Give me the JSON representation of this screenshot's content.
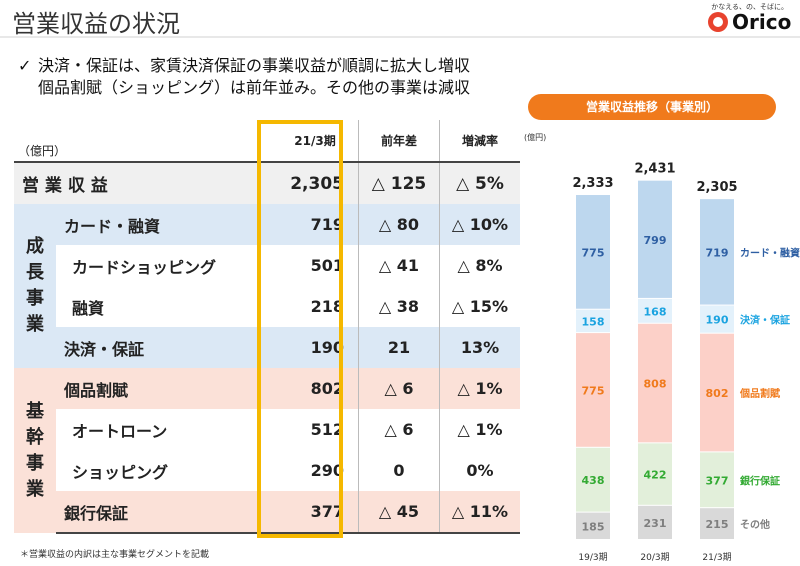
{
  "header": {
    "title": "営業収益の状況",
    "logo_tagline": "かなえる、の、そばに。",
    "logo_text": "Orico"
  },
  "bullet": {
    "check": "✓",
    "line1": "決済・保証は、家賃決済保証の事業収益が順調に拡大し増収",
    "line2": "個品割賦（ショッピング）は前年並み。その他の事業は減収"
  },
  "table": {
    "unit": "（億円）",
    "headers": {
      "current": "21/3期",
      "diff": "前年差",
      "rate": "増減率"
    },
    "total": {
      "label": "営 業 収 益",
      "value": "2,305",
      "diff": "△ 125",
      "rate": "△ 5%"
    },
    "seicho_label": [
      "成",
      "長",
      "事",
      "業"
    ],
    "kikan_label": [
      "基",
      "幹",
      "事",
      "業"
    ],
    "rows": [
      {
        "label": "カード・融資",
        "value": "719",
        "diff": "△ 80",
        "rate": "△ 10%"
      },
      {
        "label": "カードショッピング",
        "value": "501",
        "diff": "△ 41",
        "rate": "△ 8%"
      },
      {
        "label": "融資",
        "value": "218",
        "diff": "△ 38",
        "rate": "△ 15%"
      },
      {
        "label": "決済・保証",
        "value": "190",
        "diff": "21",
        "rate": "13%"
      },
      {
        "label": "個品割賦",
        "value": "802",
        "diff": "△ 6",
        "rate": "△ 1%"
      },
      {
        "label": "オートローン",
        "value": "512",
        "diff": "△ 6",
        "rate": "△ 1%"
      },
      {
        "label": "ショッピング",
        "value": "290",
        "diff": "0",
        "rate": "0%"
      },
      {
        "label": "銀行保証",
        "value": "377",
        "diff": "△ 45",
        "rate": "△ 11%"
      }
    ]
  },
  "footnote": "＊営業収益の内訳は主な事業セグメントを記載",
  "chart_data": {
    "type": "bar",
    "stacked": true,
    "title": "営業収益推移（事業別）",
    "unit": "(億円)",
    "categories": [
      "19/3期",
      "20/3期",
      "21/3期"
    ],
    "totals": [
      "2,333",
      "2,431",
      "2,305"
    ],
    "series": [
      {
        "name": "その他",
        "values": [
          185,
          231,
          215
        ],
        "color": "#d9d9d9",
        "text_color": "#7f7f7f"
      },
      {
        "name": "銀行保証",
        "values": [
          438,
          422,
          377
        ],
        "color": "#e2efda",
        "text_color": "#33aa33"
      },
      {
        "name": "個品割賦",
        "values": [
          775,
          808,
          802
        ],
        "color": "#fcd0c8",
        "text_color": "#f07a1c"
      },
      {
        "name": "決済・保証",
        "values": [
          158,
          168,
          190
        ],
        "color": "#e3f1fb",
        "text_color": "#1aa3e0"
      },
      {
        "name": "カード・融資",
        "values": [
          775,
          799,
          719
        ],
        "color": "#bdd7ee",
        "text_color": "#2e5fa3"
      }
    ]
  }
}
